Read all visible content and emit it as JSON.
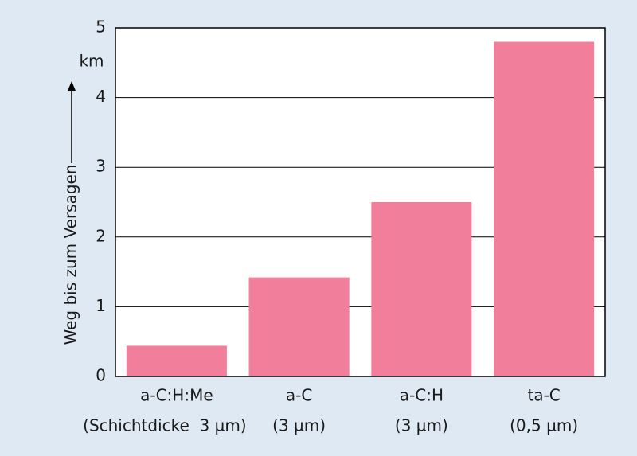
{
  "chart_data": {
    "type": "bar",
    "y_label": "Weg bis zum Versagen",
    "y_unit": "km",
    "categories": [
      "a-C:H:Me",
      "a-C",
      "a-C:H",
      "ta-C"
    ],
    "category_notes": [
      "(Schichtdicke  3 µm)",
      "(3 µm)",
      "(3 µm)",
      "(0,5 µm)"
    ],
    "values": [
      0.44,
      1.42,
      2.5,
      4.8
    ],
    "color": "#f17f9b",
    "ylim": [
      0,
      5
    ],
    "yticks": [
      0,
      1,
      2,
      3,
      4,
      5
    ],
    "grid": true
  }
}
